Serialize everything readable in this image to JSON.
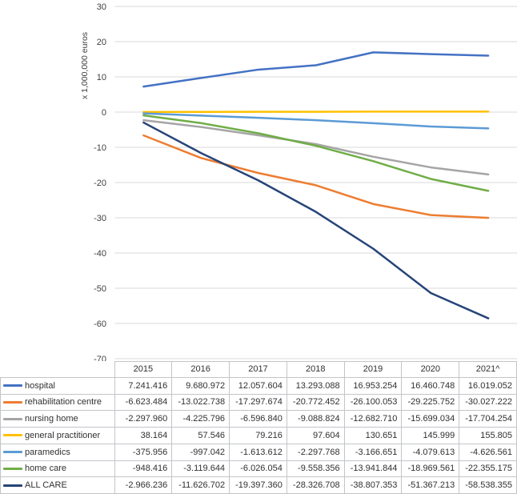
{
  "chart_data": {
    "type": "line",
    "title": "",
    "xlabel": "",
    "ylabel": "x 1,000,000 euros",
    "categories": [
      "2015",
      "2016",
      "2017",
      "2018",
      "2019",
      "2020",
      "2021^"
    ],
    "series": [
      {
        "name": "hospital",
        "color": "#4472C4",
        "values": [
          7.241416,
          9.680972,
          12.057604,
          13.293088,
          16.953254,
          16.460748,
          16.019052
        ]
      },
      {
        "name": "rehabilitation centre",
        "color": "#ED7D31",
        "values": [
          -6.623484,
          -13.022738,
          -17.297674,
          -20.772452,
          -26.100053,
          -29.225752,
          -30.027222
        ]
      },
      {
        "name": "nursing home",
        "color": "#A5A5A5",
        "values": [
          -2.29796,
          -4.225796,
          -6.59684,
          -9.088824,
          -12.68271,
          -15.699034,
          -17.704254
        ]
      },
      {
        "name": "general practitioner",
        "color": "#FFC000",
        "values": [
          0.038164,
          0.057546,
          0.079216,
          0.097604,
          0.130651,
          0.145999,
          0.155805
        ]
      },
      {
        "name": "paramedics",
        "color": "#5B9BD5",
        "values": [
          -0.375956,
          -0.997042,
          -1.613612,
          -2.297768,
          -3.166651,
          -4.079613,
          -4.626561
        ]
      },
      {
        "name": "home care",
        "color": "#70AD47",
        "values": [
          -0.948416,
          -3.119644,
          -6.026054,
          -9.558356,
          -13.941844,
          -18.969561,
          -22.355175
        ]
      },
      {
        "name": "ALL CARE",
        "color": "#264478",
        "values": [
          -2.966236,
          -11.626702,
          -19.39736,
          -28.326708,
          -38.807353,
          -51.367213,
          -58.538355
        ]
      }
    ],
    "ylim": [
      -70,
      30
    ],
    "y_ticks": [
      30,
      20,
      10,
      0,
      -10,
      -20,
      -30,
      -40,
      -50,
      -60,
      -70
    ],
    "grid": true,
    "grid_color": "#d9d9d9",
    "legend_position": "data-table-left"
  },
  "table": {
    "header": [
      "2015",
      "2016",
      "2017",
      "2018",
      "2019",
      "2020",
      "2021^"
    ],
    "rows": [
      {
        "label": "hospital",
        "color": "#4472C4",
        "values": [
          "7.241.416",
          "9.680.972",
          "12.057.604",
          "13.293.088",
          "16.953.254",
          "16.460.748",
          "16.019.052"
        ]
      },
      {
        "label": "rehabilitation centre",
        "color": "#ED7D31",
        "values": [
          "-6.623.484",
          "-13.022.738",
          "-17.297.674",
          "-20.772.452",
          "-26.100.053",
          "-29.225.752",
          "-30.027.222"
        ]
      },
      {
        "label": "nursing home",
        "color": "#A5A5A5",
        "values": [
          "-2.297.960",
          "-4.225.796",
          "-6.596.840",
          "-9.088.824",
          "-12.682.710",
          "-15.699.034",
          "-17.704.254"
        ]
      },
      {
        "label": "general practitioner",
        "color": "#FFC000",
        "values": [
          "38.164",
          "57.546",
          "79.216",
          "97.604",
          "130.651",
          "145.999",
          "155.805"
        ]
      },
      {
        "label": "paramedics",
        "color": "#5B9BD5",
        "values": [
          "-375.956",
          "-997.042",
          "-1.613.612",
          "-2.297.768",
          "-3.166.651",
          "-4.079.613",
          "-4.626.561"
        ]
      },
      {
        "label": "home care",
        "color": "#70AD47",
        "values": [
          "-948.416",
          "-3.119.644",
          "-6.026.054",
          "-9.558.356",
          "-13.941.844",
          "-18.969.561",
          "-22.355.175"
        ]
      },
      {
        "label": "ALL CARE",
        "color": "#264478",
        "values": [
          "-2.966.236",
          "-11.626.702",
          "-19.397.360",
          "-28.326.708",
          "-38.807.353",
          "-51.367.213",
          "-58.538.355"
        ]
      }
    ]
  }
}
